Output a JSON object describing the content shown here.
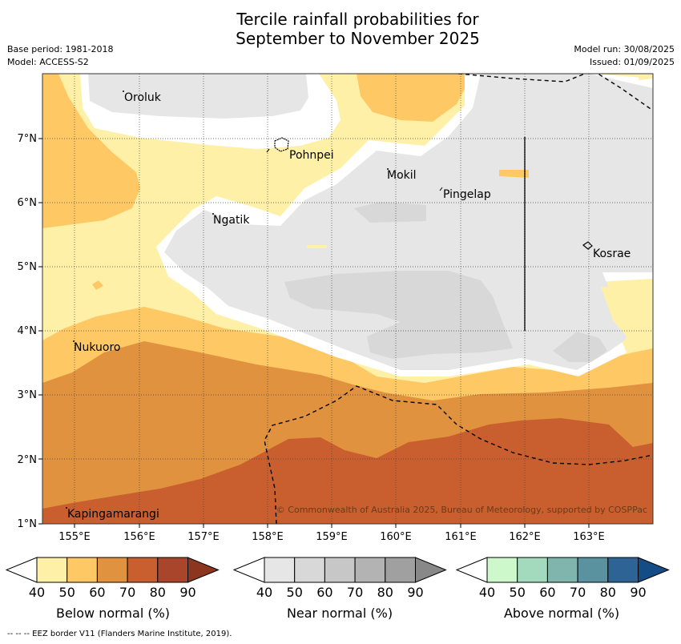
{
  "title_line1": "Tercile rainfall probabilities for",
  "title_line2": "September to November 2025",
  "base_period": "Base period: 1981-2018",
  "model": "Model: ACCESS-S2",
  "model_run": "Model run: 30/08/2025",
  "issued": "Issued: 01/09/2025",
  "copyright": "© Commonwealth of Australia 2025, Bureau of Meteorology, supported by COSPPac",
  "eez_note": "--  --  -- EEZ border V11 (Flanders Marine Institute, 2019).",
  "lon_labels": [
    "155°E",
    "156°E",
    "157°E",
    "158°E",
    "159°E",
    "160°E",
    "161°E",
    "162°E",
    "163°E"
  ],
  "lat_labels": [
    "1°N",
    "2°N",
    "3°N",
    "4°N",
    "5°N",
    "6°N",
    "7°N"
  ],
  "places": [
    {
      "name": "Oroluk"
    },
    {
      "name": "Pohnpei"
    },
    {
      "name": "Mokil"
    },
    {
      "name": "Pingelap"
    },
    {
      "name": "Ngatik"
    },
    {
      "name": "Kosrae"
    },
    {
      "name": "Nukuoro"
    },
    {
      "name": "Kapingamarangi"
    }
  ],
  "colorbars": [
    {
      "title": "Below normal (%)",
      "ticks": [
        "40",
        "50",
        "60",
        "70",
        "80",
        "90"
      ],
      "colors": [
        "#fff0a8",
        "#fec965",
        "#e0923f",
        "#c95f2e",
        "#a8452a",
        "#8c3620"
      ]
    },
    {
      "title": "Near normal (%)",
      "ticks": [
        "40",
        "50",
        "60",
        "70",
        "80",
        "90"
      ],
      "colors": [
        "#e6e6e6",
        "#d8d8d8",
        "#c7c7c7",
        "#b3b3b3",
        "#a0a0a0",
        "#888888"
      ]
    },
    {
      "title": "Above normal (%)",
      "ticks": [
        "40",
        "50",
        "60",
        "70",
        "80",
        "90"
      ],
      "colors": [
        "#ccf8cc",
        "#a3d9bd",
        "#7fb5ad",
        "#5a92a0",
        "#2e6396",
        "#144c85"
      ]
    }
  ]
}
